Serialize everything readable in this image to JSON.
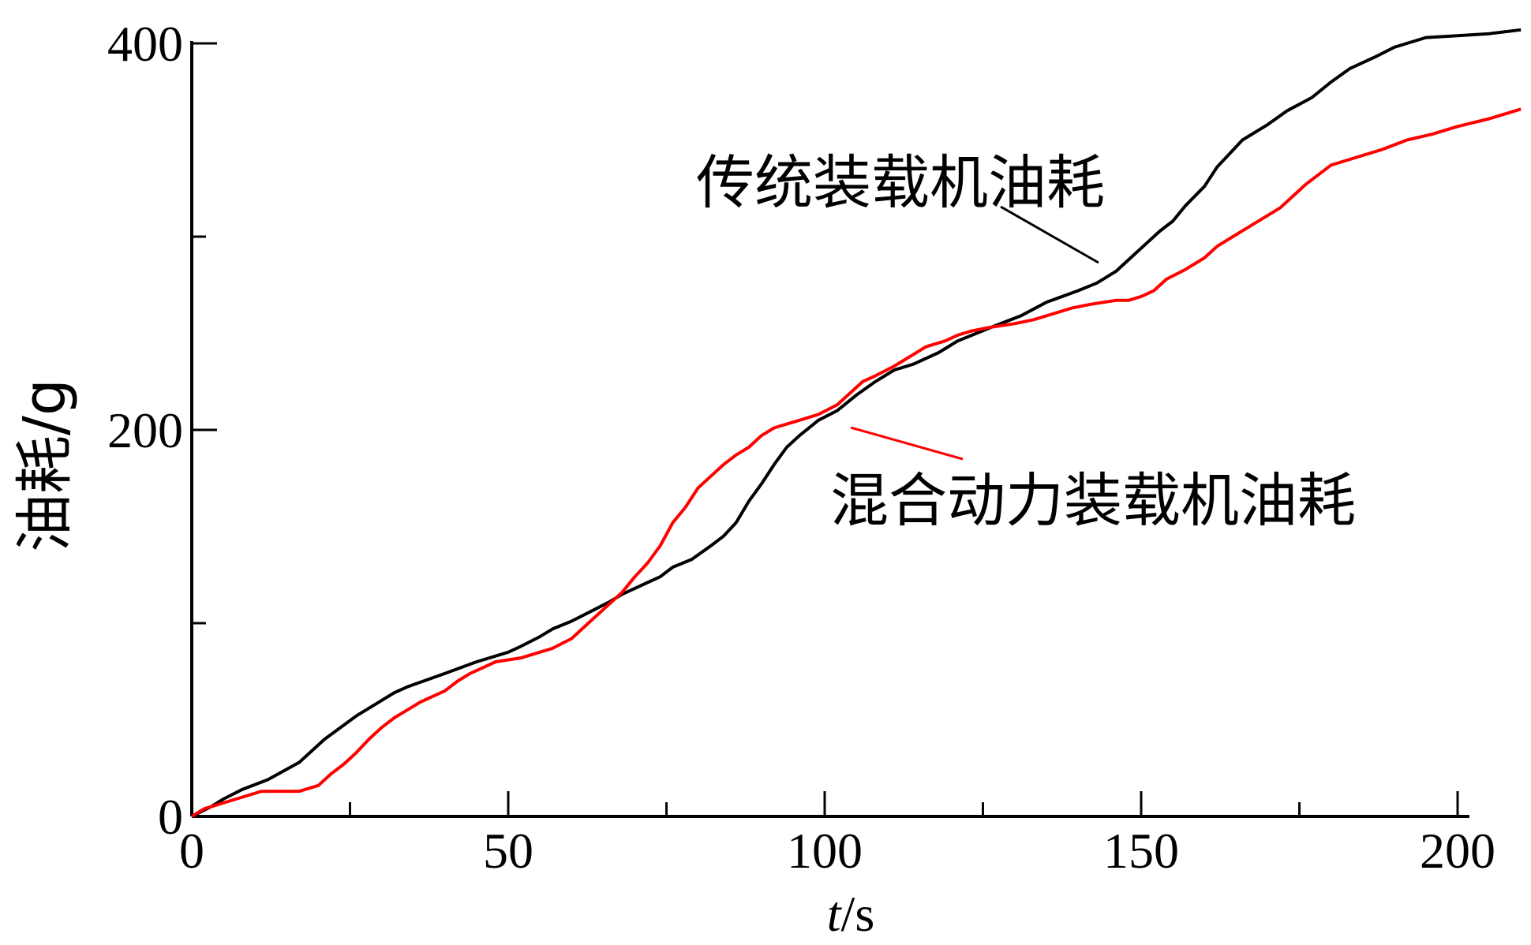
{
  "chart_data": {
    "type": "line",
    "xlabel": {
      "italic": "t",
      "rest": "/s"
    },
    "ylabel": "油耗/g",
    "xlim": [
      0,
      210
    ],
    "ylim": [
      0,
      405
    ],
    "x_ticks": [
      0,
      50,
      100,
      150,
      200
    ],
    "x_tick_labels": [
      "0",
      "50",
      "100",
      "150",
      "200"
    ],
    "x_minor_ticks": [
      25,
      75,
      125,
      175
    ],
    "y_ticks": [
      0,
      200,
      400
    ],
    "y_tick_labels": [
      "0",
      "200",
      "400"
    ],
    "y_minor_ticks": [
      100,
      300
    ],
    "grid": false,
    "series": [
      {
        "name": "传统装载机油耗",
        "color": "#000000",
        "points": [
          [
            0,
            0
          ],
          [
            3,
            5
          ],
          [
            5,
            9
          ],
          [
            8,
            14
          ],
          [
            12,
            19
          ],
          [
            17,
            28
          ],
          [
            21,
            40
          ],
          [
            26,
            52
          ],
          [
            32,
            64
          ],
          [
            34,
            67
          ],
          [
            40,
            74
          ],
          [
            45,
            80
          ],
          [
            50,
            85
          ],
          [
            52,
            88
          ],
          [
            55,
            93
          ],
          [
            57,
            97
          ],
          [
            60,
            101
          ],
          [
            63,
            106
          ],
          [
            66,
            111
          ],
          [
            68,
            115
          ],
          [
            70,
            118
          ],
          [
            72,
            121
          ],
          [
            74,
            124
          ],
          [
            76,
            129
          ],
          [
            79,
            133
          ],
          [
            82,
            140
          ],
          [
            84,
            145
          ],
          [
            86,
            152
          ],
          [
            88,
            163
          ],
          [
            90,
            172
          ],
          [
            92,
            182
          ],
          [
            94,
            191
          ],
          [
            96,
            197
          ],
          [
            99,
            205
          ],
          [
            102,
            210
          ],
          [
            105,
            218
          ],
          [
            108,
            225
          ],
          [
            111,
            231
          ],
          [
            114,
            234
          ],
          [
            118,
            240
          ],
          [
            121,
            246
          ],
          [
            124,
            250
          ],
          [
            127,
            254
          ],
          [
            131,
            259
          ],
          [
            135,
            266
          ],
          [
            140,
            272
          ],
          [
            143,
            276
          ],
          [
            146,
            282
          ],
          [
            149,
            291
          ],
          [
            151,
            297
          ],
          [
            153,
            303
          ],
          [
            155,
            308
          ],
          [
            157,
            316
          ],
          [
            160,
            326
          ],
          [
            162,
            336
          ],
          [
            164,
            343
          ],
          [
            166,
            350
          ],
          [
            170,
            358
          ],
          [
            173,
            365
          ],
          [
            177,
            372
          ],
          [
            180,
            380
          ],
          [
            183,
            387
          ],
          [
            187,
            393
          ],
          [
            190,
            398
          ],
          [
            195,
            403
          ],
          [
            200,
            404
          ],
          [
            205,
            405
          ],
          [
            210,
            407
          ]
        ]
      },
      {
        "name": "混合动力装载机油耗",
        "color": "#ff0000",
        "points": [
          [
            0,
            0
          ],
          [
            1,
            2
          ],
          [
            2,
            4
          ],
          [
            4,
            6
          ],
          [
            6,
            8
          ],
          [
            8,
            10
          ],
          [
            10,
            12
          ],
          [
            11,
            13
          ],
          [
            14,
            13
          ],
          [
            17,
            13
          ],
          [
            20,
            16
          ],
          [
            22,
            22
          ],
          [
            24,
            27
          ],
          [
            26,
            33
          ],
          [
            28,
            40
          ],
          [
            30,
            46
          ],
          [
            32,
            51
          ],
          [
            34,
            55
          ],
          [
            36,
            59
          ],
          [
            38,
            62
          ],
          [
            40,
            65
          ],
          [
            42,
            70
          ],
          [
            44,
            74
          ],
          [
            46,
            77
          ],
          [
            48,
            80
          ],
          [
            50,
            81
          ],
          [
            52,
            82
          ],
          [
            54,
            84
          ],
          [
            57,
            87
          ],
          [
            60,
            92
          ],
          [
            62,
            98
          ],
          [
            64,
            104
          ],
          [
            66,
            110
          ],
          [
            68,
            116
          ],
          [
            70,
            124
          ],
          [
            72,
            131
          ],
          [
            74,
            140
          ],
          [
            76,
            152
          ],
          [
            78,
            160
          ],
          [
            80,
            170
          ],
          [
            82,
            176
          ],
          [
            84,
            182
          ],
          [
            86,
            187
          ],
          [
            88,
            191
          ],
          [
            90,
            197
          ],
          [
            92,
            201
          ],
          [
            94,
            203
          ],
          [
            96,
            205
          ],
          [
            99,
            208
          ],
          [
            102,
            213
          ],
          [
            104,
            219
          ],
          [
            106,
            225
          ],
          [
            108,
            228
          ],
          [
            111,
            233
          ],
          [
            114,
            239
          ],
          [
            116,
            243
          ],
          [
            119,
            246
          ],
          [
            121,
            249
          ],
          [
            123,
            251
          ],
          [
            126,
            253
          ],
          [
            130,
            255
          ],
          [
            133,
            257
          ],
          [
            136,
            260
          ],
          [
            139,
            263
          ],
          [
            142,
            265
          ],
          [
            144,
            266
          ],
          [
            146,
            267
          ],
          [
            148,
            267
          ],
          [
            150,
            269
          ],
          [
            152,
            272
          ],
          [
            154,
            278
          ],
          [
            157,
            283
          ],
          [
            160,
            289
          ],
          [
            162,
            295
          ],
          [
            165,
            301
          ],
          [
            168,
            307
          ],
          [
            172,
            315
          ],
          [
            176,
            327
          ],
          [
            180,
            337
          ],
          [
            184,
            341
          ],
          [
            188,
            345
          ],
          [
            192,
            350
          ],
          [
            196,
            353
          ],
          [
            200,
            357
          ],
          [
            205,
            361
          ],
          [
            210,
            366
          ]
        ]
      }
    ],
    "annotations": [
      {
        "text": "传统装载机油耗",
        "series": "传统装载机油耗"
      },
      {
        "text": "混合动力装载机油耗",
        "series": "混合动力装载机油耗"
      }
    ]
  }
}
